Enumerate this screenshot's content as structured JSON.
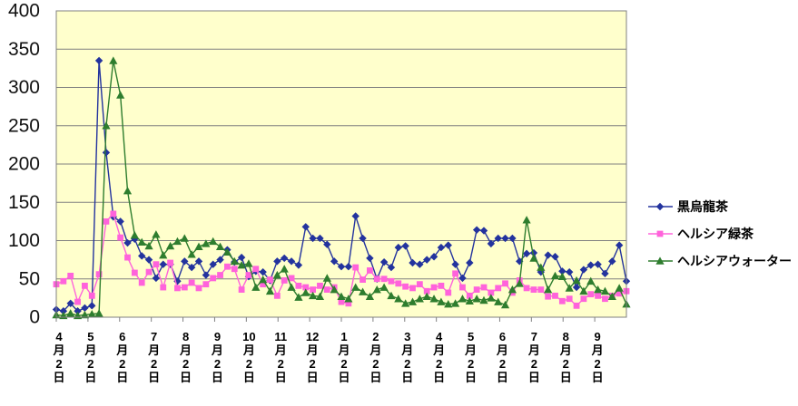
{
  "chart_data": {
    "type": "line",
    "title": "",
    "xlabel": "",
    "ylabel": "",
    "ylim": [
      0,
      400
    ],
    "y_tick_step": 50,
    "y_tick_labels": [
      "400",
      "350",
      "300",
      "250",
      "200",
      "150",
      "100",
      "50",
      "0"
    ],
    "grid": true,
    "legend_position": "right",
    "plot_background": "#FFFFCC",
    "grid_color": "#808080",
    "axis_color": "#808080",
    "categories": [
      "4月2日",
      "5月2日",
      "6月2日",
      "7月2日",
      "8月2日",
      "9月2日",
      "10月2日",
      "11月2日",
      "12月2日",
      "1月2日",
      "2月2日",
      "3月2日",
      "4月2日",
      "5月2日",
      "6月2日",
      "7月2日",
      "8月2日",
      "9月2日"
    ],
    "series": [
      {
        "name": "黒烏龍茶",
        "color": "#23339E",
        "marker": "diamond",
        "values": [
          10,
          8,
          18,
          8,
          12,
          15,
          335,
          215,
          131,
          125,
          97,
          102,
          80,
          75,
          51,
          69,
          69,
          47,
          73,
          65,
          73,
          55,
          69,
          75,
          88,
          72,
          78,
          53,
          60,
          59,
          48,
          73,
          77,
          73,
          68,
          118,
          103,
          103,
          95,
          73,
          66,
          66,
          132,
          103,
          77,
          50,
          72,
          65,
          91,
          93,
          71,
          69,
          75,
          79,
          91,
          94,
          69,
          51,
          71,
          114,
          113,
          96,
          103,
          103,
          103,
          73,
          83,
          84,
          59,
          81,
          79,
          60,
          59,
          39,
          62,
          68,
          69,
          57,
          73,
          94,
          47
        ]
      },
      {
        "name": "ヘルシア緑茶",
        "color": "#FF63DB",
        "marker": "square",
        "values": [
          43,
          47,
          54,
          20,
          41,
          28,
          56,
          125,
          135,
          104,
          78,
          58,
          45,
          59,
          69,
          39,
          71,
          38,
          39,
          45,
          38,
          43,
          51,
          55,
          66,
          63,
          36,
          55,
          63,
          43,
          49,
          28,
          48,
          51,
          41,
          39,
          36,
          41,
          36,
          39,
          20,
          18,
          65,
          49,
          61,
          50,
          50,
          47,
          44,
          40,
          38,
          43,
          34,
          39,
          41,
          32,
          57,
          39,
          28,
          36,
          39,
          32,
          38,
          44,
          32,
          48,
          38,
          36,
          36,
          27,
          28,
          21,
          24,
          15,
          24,
          30,
          28,
          24,
          28,
          31,
          34
        ]
      },
      {
        "name": "ヘルシアウォーター",
        "color": "#2E7D2E",
        "marker": "triangle",
        "values": [
          3,
          2,
          5,
          2,
          3,
          4,
          5,
          250,
          335,
          290,
          165,
          107,
          98,
          93,
          108,
          81,
          93,
          99,
          103,
          82,
          92,
          96,
          99,
          92,
          85,
          73,
          68,
          70,
          39,
          49,
          34,
          55,
          63,
          39,
          26,
          32,
          28,
          27,
          51,
          36,
          27,
          24,
          39,
          33,
          27,
          36,
          39,
          28,
          24,
          18,
          20,
          24,
          27,
          24,
          20,
          17,
          18,
          24,
          21,
          24,
          22,
          25,
          20,
          16,
          36,
          44,
          127,
          77,
          65,
          36,
          54,
          53,
          38,
          48,
          34,
          47,
          36,
          34,
          27,
          38,
          17
        ]
      }
    ]
  }
}
